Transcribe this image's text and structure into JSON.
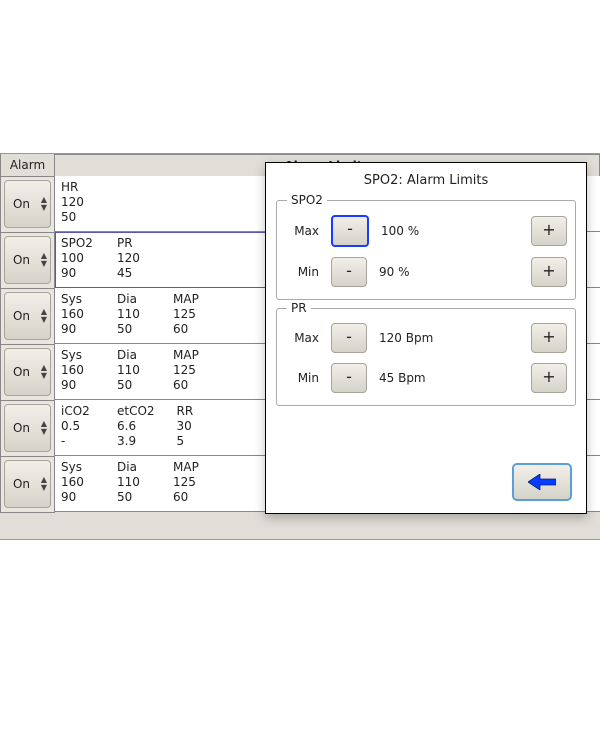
{
  "colors": {
    "panel_bg": "#e0ded6",
    "button_face_top": "#f1efe8",
    "button_face_bot": "#d5d3c9",
    "button_border": "#a6a49b",
    "dialog_border": "#000000",
    "focus_blue": "#1a3cff",
    "back_border": "#5aa0d6",
    "row_border": "#888888",
    "text": "#222222",
    "arrow_fill": "#0a3cff"
  },
  "header": {
    "alarm": "Alarm",
    "panel_title": "Alarm Limits"
  },
  "rows": [
    {
      "toggle": "On",
      "selected": false,
      "params": [
        {
          "name": "HR",
          "hi": "120",
          "lo": "50"
        }
      ]
    },
    {
      "toggle": "On",
      "selected": true,
      "params": [
        {
          "name": "SPO2",
          "hi": "100",
          "lo": "90"
        },
        {
          "name": "PR",
          "hi": "120",
          "lo": "45"
        }
      ]
    },
    {
      "toggle": "On",
      "selected": false,
      "params": [
        {
          "name": "Sys",
          "hi": "160",
          "lo": "90"
        },
        {
          "name": "Dia",
          "hi": "110",
          "lo": "50"
        },
        {
          "name": "MAP",
          "hi": "125",
          "lo": "60"
        }
      ]
    },
    {
      "toggle": "On",
      "selected": false,
      "params": [
        {
          "name": "Sys",
          "hi": "160",
          "lo": "90"
        },
        {
          "name": "Dia",
          "hi": "110",
          "lo": "50"
        },
        {
          "name": "MAP",
          "hi": "125",
          "lo": "60"
        }
      ]
    },
    {
      "toggle": "On",
      "selected": false,
      "params": [
        {
          "name": "iCO2",
          "hi": "0.5",
          "lo": "-"
        },
        {
          "name": "etCO2",
          "hi": "6.6",
          "lo": "3.9"
        },
        {
          "name": "RR",
          "hi": "30",
          "lo": "5"
        }
      ]
    },
    {
      "toggle": "On",
      "selected": false,
      "params": [
        {
          "name": "Sys",
          "hi": "160",
          "lo": "90"
        },
        {
          "name": "Dia",
          "hi": "110",
          "lo": "50"
        },
        {
          "name": "MAP",
          "hi": "125",
          "lo": "60"
        }
      ]
    }
  ],
  "dialog": {
    "title": "SPO2: Alarm Limits",
    "groups": [
      {
        "legend": "SPO2",
        "rows": [
          {
            "label": "Max",
            "dec": "-",
            "dec_focused": true,
            "value": "100 %",
            "inc": "+"
          },
          {
            "label": "Min",
            "dec": "-",
            "dec_focused": false,
            "value": "90 %",
            "inc": "+"
          }
        ]
      },
      {
        "legend": "PR",
        "rows": [
          {
            "label": "Max",
            "dec": "-",
            "dec_focused": false,
            "value": "120 Bpm",
            "inc": "+"
          },
          {
            "label": "Min",
            "dec": "-",
            "dec_focused": false,
            "value": "45 Bpm",
            "inc": "+"
          }
        ]
      }
    ],
    "back_icon": "arrow-left"
  }
}
